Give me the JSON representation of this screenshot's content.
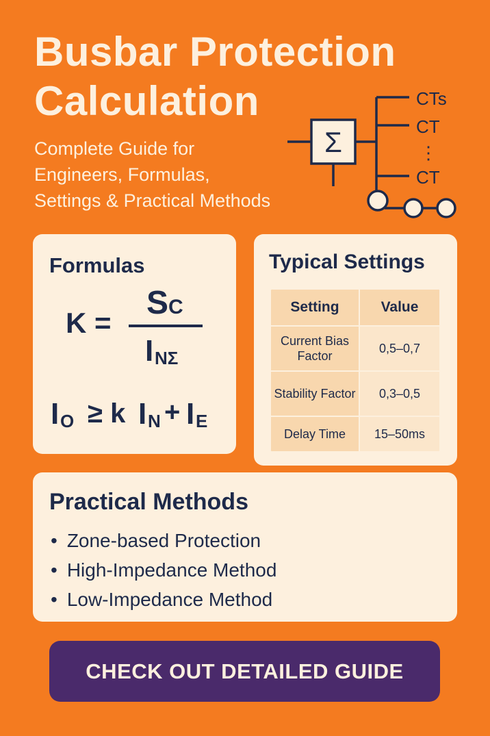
{
  "header": {
    "title_line1": "Busbar Protection",
    "title_line2": "Calculation",
    "subtitle_line1": "Complete Guide for",
    "subtitle_line2": "Engineers, Formulas,",
    "subtitle_line3": "Settings & Practical Methods"
  },
  "diagram": {
    "sum_symbol": "Σ",
    "labels": [
      "CTs",
      "CT",
      "⋮",
      "CT"
    ]
  },
  "formulas": {
    "title": "Formulas",
    "f1": {
      "lhs": "K =",
      "num_main": "S",
      "num_sub": "C",
      "den_main": "I",
      "den_sub": "NΣ"
    },
    "f2": {
      "a": "I",
      "a_sub": "O",
      "op": "≥ k",
      "b": "I",
      "b_sub": "N",
      "plus": "+",
      "c": "I",
      "c_sub": "E"
    }
  },
  "settings": {
    "title": "Typical Settings",
    "headers": [
      "Setting",
      "Value"
    ],
    "rows": [
      {
        "setting": "Current Bias Factor",
        "value": "0,5–0,7"
      },
      {
        "setting": "Stability Factor",
        "value": "0,3–0,5"
      },
      {
        "setting": "Delay Time",
        "value": "15–50ms"
      }
    ]
  },
  "practical": {
    "title": "Practical Methods",
    "items": [
      "Zone-based Protection",
      "High-Impedance Method",
      "Low-Impedance Method"
    ]
  },
  "cta": {
    "label": "CHECK OUT DETAILED GUIDE"
  },
  "colors": {
    "background": "#F47B20",
    "card": "#FDF0DE",
    "text": "#1E2A4A",
    "button": "#4A2A6B"
  }
}
